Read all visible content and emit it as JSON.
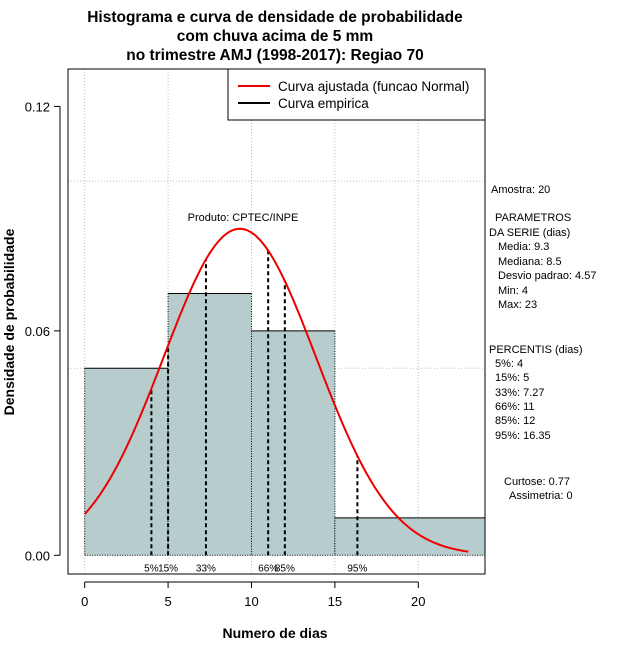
{
  "title_lines": [
    "Histograma e curva de densidade de probabilidade",
    "com chuva acima de 5 mm",
    "no trimestre AMJ (1998-2017): Regiao 70"
  ],
  "colors": {
    "bar_fill": "#b7cdcd",
    "fitted_curve": "#ee0000",
    "empirical": "#000000",
    "grid": "#bdbdbd"
  },
  "chart_data": {
    "type": "bar",
    "title": "Histograma e curva de densidade de probabilidade com chuva acima de 5 mm no trimestre AMJ (1998-2017): Regiao 70",
    "xlabel": "Numero de dias",
    "ylabel": "Densidade de probabilidade",
    "xlim": [
      -1,
      24
    ],
    "ylim": [
      -0.005,
      0.13
    ],
    "x_ticks": [
      0,
      5,
      10,
      15,
      20
    ],
    "x_tick_labels": [
      "0",
      "5",
      "10",
      "15",
      "20"
    ],
    "y_ticks": [
      0.0,
      0.06,
      0.12
    ],
    "y_tick_labels": [
      "0.00",
      "0.06",
      "0.12"
    ],
    "x_grid": [
      0,
      5,
      10,
      15,
      20
    ],
    "y_grid": [
      0.05,
      0.1
    ],
    "bins": [
      {
        "from": 0,
        "to": 5,
        "density": 0.05
      },
      {
        "from": 5,
        "to": 10,
        "density": 0.07
      },
      {
        "from": 10,
        "to": 15,
        "density": 0.06
      },
      {
        "from": 15,
        "to": 24,
        "density": 0.01
      }
    ],
    "fitted_curve": {
      "name": "Curva ajustada (funcao Normal)",
      "mean": 9.3,
      "sd": 4.57,
      "x_from": 0,
      "x_to": 23
    },
    "empirical_curve_name": "Curva empirica",
    "legend_position": "top-right",
    "percentile_lines": [
      {
        "label": "5%",
        "x": 4
      },
      {
        "label": "15%",
        "x": 5
      },
      {
        "label": "33%",
        "x": 7.27
      },
      {
        "label": "66%",
        "x": 11
      },
      {
        "label": "85%",
        "x": 12
      },
      {
        "label": "95%",
        "x": 16.35
      }
    ],
    "annotation": "Produto: CPTEC/INPE"
  },
  "stats_panel": {
    "amostra": "Amostra: 20",
    "param_title_1": "PARAMETROS",
    "param_title_2": "DA SERIE (dias)",
    "media": "Media: 9.3",
    "mediana": "Mediana: 8.5",
    "desvio": "Desvio padrao: 4.57",
    "min": "Min: 4",
    "max": "Max: 23",
    "percentis_title": "PERCENTIS (dias)",
    "p5": "5%: 4",
    "p15": "15%: 5",
    "p33": "33%: 7.27",
    "p66": "66%: 11",
    "p85": "85%: 12",
    "p95": "95%: 16.35",
    "curtose": "Curtose: 0.77",
    "assimetria": "Assimetria: 0"
  }
}
